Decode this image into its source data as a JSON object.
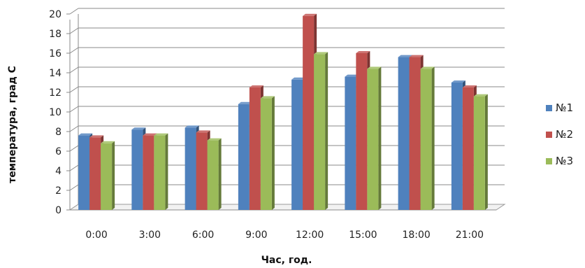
{
  "chart_data": {
    "type": "bar",
    "title": "",
    "xlabel": "Час, год.",
    "ylabel": "температура, град С",
    "categories": [
      "0:00",
      "3:00",
      "6:00",
      "9:00",
      "12:00",
      "15:00",
      "18:00",
      "21:00"
    ],
    "series": [
      {
        "name": "№1",
        "color": "#4F81BD",
        "values": [
          7.6,
          8.2,
          8.4,
          10.8,
          13.3,
          13.6,
          15.6,
          13.0
        ]
      },
      {
        "name": "№2",
        "color": "#C0504D",
        "values": [
          7.4,
          7.6,
          7.9,
          12.5,
          19.8,
          16.0,
          15.6,
          12.5
        ]
      },
      {
        "name": "№3",
        "color": "#9BBB59",
        "values": [
          6.8,
          7.6,
          7.1,
          11.4,
          15.9,
          14.4,
          14.4,
          11.6
        ]
      }
    ],
    "ylim": [
      0,
      20
    ],
    "yticks": [
      0,
      2,
      4,
      6,
      8,
      10,
      12,
      14,
      16,
      18,
      20
    ],
    "grid": true,
    "legend_position": "right"
  }
}
